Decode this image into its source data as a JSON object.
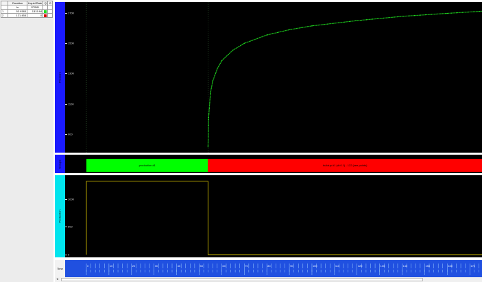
{
  "table": {
    "headers": [
      "Duration",
      "Liquid Rate",
      "Q",
      "G"
    ],
    "units": [
      "hr",
      "STB/D"
    ],
    "rows": [
      {
        "index": "1",
        "duration": "53.9383",
        "rate": "1315.94",
        "color": "#22dd22"
      },
      {
        "index": "2",
        "duration": "121.455",
        "rate": "0",
        "color": "#dd0000"
      }
    ]
  },
  "tracks": {
    "pressure": {
      "label": "Pressure",
      "ticks": [
        "1700",
        "1500",
        "1300",
        "1100",
        "900"
      ]
    },
    "groups": {
      "label": "Groups",
      "bar1": "production #1",
      "bar2": "buildup #1 (dt:0.1) - 122 (see points)"
    },
    "production": {
      "label": "Production",
      "ticks": [
        "1000",
        "500",
        "0"
      ]
    },
    "time": {
      "label": "Time",
      "ticks": [
        "0",
        "10",
        "20",
        "30",
        "40",
        "50",
        "60",
        "70",
        "80",
        "90",
        "100",
        "110",
        "120",
        "130",
        "140",
        "150",
        "160",
        "170"
      ]
    }
  },
  "colors": {
    "pressure_axis": "#1a1aff",
    "production_axis": "#00e5ee",
    "groups_axis": "#1a1aff",
    "curve": "#22ee22",
    "production_line": "#c8b400",
    "bar_green": "#00ff00",
    "bar_red": "#ff0000",
    "time_ruler": "#2050e0"
  },
  "chart_data": {
    "type": "line",
    "pressure": {
      "ylim": [
        800,
        1750
      ],
      "x": [
        53.94,
        54.2,
        55,
        56,
        58,
        60,
        65,
        70,
        80,
        90,
        100,
        120,
        140,
        160,
        175.4
      ],
      "y": [
        815,
        1010,
        1170,
        1250,
        1330,
        1385,
        1455,
        1500,
        1555,
        1590,
        1615,
        1650,
        1678,
        1698,
        1712
      ]
    },
    "production": {
      "ylim": [
        0,
        1400
      ],
      "x": [
        0,
        0,
        53.94,
        53.94,
        175.4
      ],
      "y": [
        0,
        1316,
        1316,
        0,
        0
      ]
    },
    "xlim": [
      0,
      175.4
    ]
  }
}
